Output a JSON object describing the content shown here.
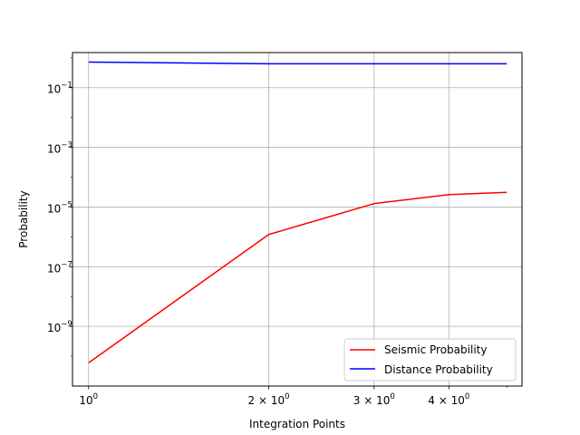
{
  "chart_data": {
    "type": "line",
    "title": "",
    "xlabel": "Integration Points",
    "ylabel": "Probability",
    "xscale": "log",
    "yscale": "log",
    "xlim": [
      0.94,
      5.3
    ],
    "ylim": [
      1e-11,
      1.5
    ],
    "grid": true,
    "legend_position": "lower right",
    "x": [
      1,
      2,
      3,
      4,
      5
    ],
    "x_ticks": [
      {
        "value": 1,
        "base": "10",
        "exp": "0"
      },
      {
        "value": 2,
        "base": "2 × 10",
        "exp": "0"
      },
      {
        "value": 3,
        "base": "3 × 10",
        "exp": "0"
      },
      {
        "value": 4,
        "base": "4 × 10",
        "exp": "0"
      }
    ],
    "y_ticks": [
      {
        "value": 1e-09,
        "base": "10",
        "exp": "−9"
      },
      {
        "value": 1e-07,
        "base": "10",
        "exp": "−7"
      },
      {
        "value": 1e-05,
        "base": "10",
        "exp": "−5"
      },
      {
        "value": 0.001,
        "base": "10",
        "exp": "−3"
      },
      {
        "value": 0.1,
        "base": "10",
        "exp": "−1"
      }
    ],
    "series": [
      {
        "name": "Seismic Probability",
        "color": "#ff0000",
        "values": [
          6e-11,
          1.2e-06,
          1.3e-05,
          2.6e-05,
          3.1e-05
        ]
      },
      {
        "name": "Distance Probability",
        "color": "#0000ff",
        "values": [
          0.72,
          0.63,
          0.63,
          0.63,
          0.63
        ]
      }
    ]
  }
}
